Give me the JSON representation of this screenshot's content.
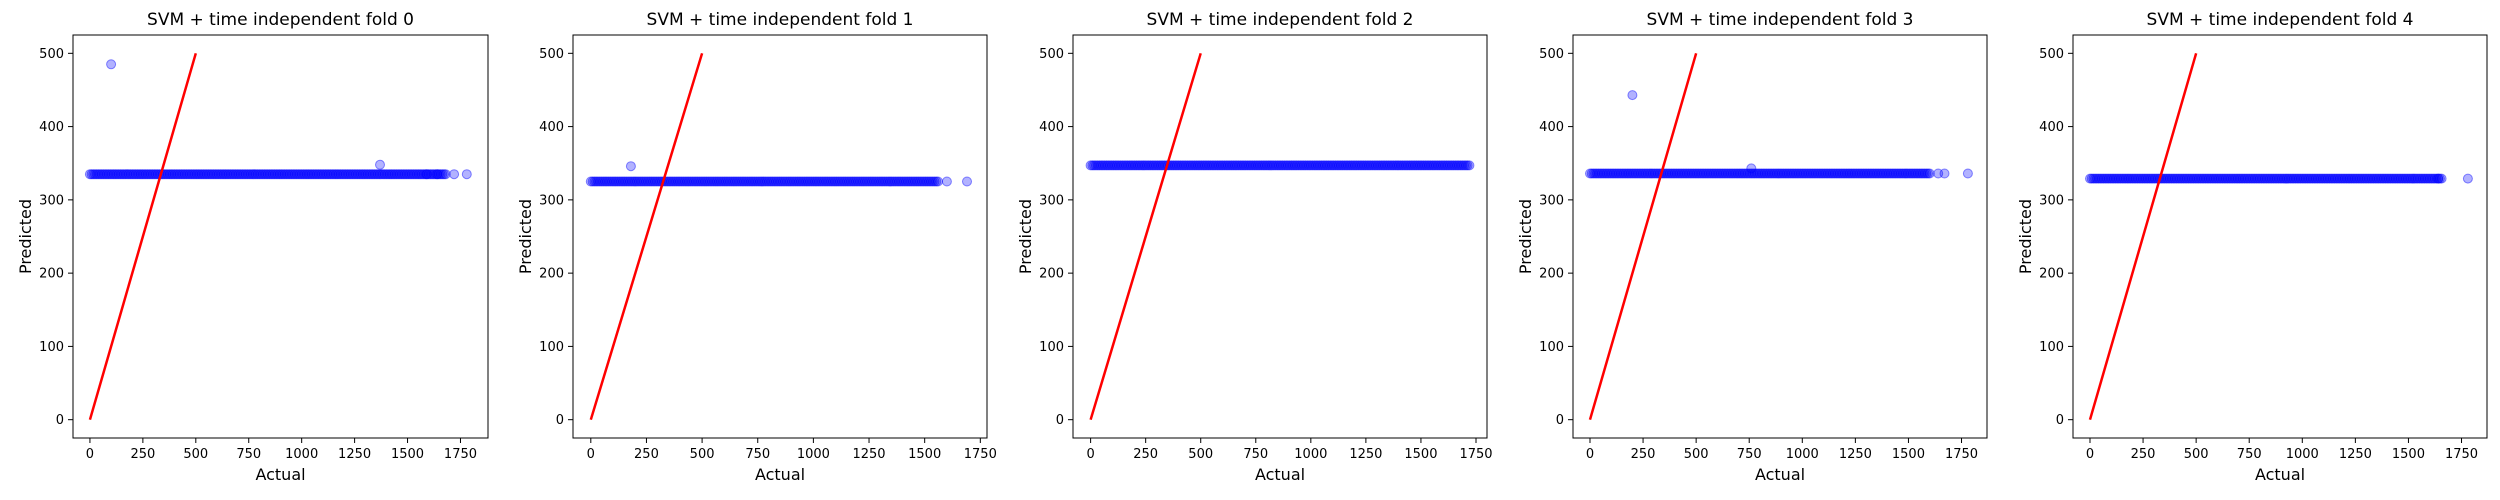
{
  "chart_data": [
    {
      "type": "scatter",
      "title": "SVM + time independent fold 0",
      "xlabel": "Actual",
      "ylabel": "Predicted",
      "xlim": [
        -80,
        1880
      ],
      "ylim": [
        -25,
        525
      ],
      "xticks": [
        0,
        250,
        500,
        750,
        1000,
        1250,
        1500,
        1750
      ],
      "yticks": [
        0,
        100,
        200,
        300,
        400,
        500
      ],
      "reference_line": {
        "x": [
          0,
          500
        ],
        "y": [
          0,
          500
        ],
        "color": "#ff0000"
      },
      "point_color": "#0000ff",
      "band_value": 335,
      "band_x_range": [
        0,
        1680
      ],
      "points": [
        [
          100,
          485
        ],
        [
          1370,
          348
        ],
        [
          1720,
          335
        ],
        [
          1780,
          335
        ],
        [
          1590,
          335
        ],
        [
          1640,
          335
        ]
      ]
    },
    {
      "type": "scatter",
      "title": "SVM + time independent fold 1",
      "xlabel": "Actual",
      "ylabel": "Predicted",
      "xlim": [
        -80,
        1780
      ],
      "ylim": [
        -25,
        525
      ],
      "xticks": [
        0,
        250,
        500,
        750,
        1000,
        1250,
        1500,
        1750
      ],
      "yticks": [
        0,
        100,
        200,
        300,
        400,
        500
      ],
      "reference_line": {
        "x": [
          0,
          500
        ],
        "y": [
          0,
          500
        ],
        "color": "#ff0000"
      },
      "point_color": "#0000ff",
      "band_value": 325,
      "band_x_range": [
        0,
        1560
      ],
      "points": [
        [
          180,
          346
        ],
        [
          1600,
          325
        ],
        [
          1690,
          325
        ]
      ]
    },
    {
      "type": "scatter",
      "title": "SVM + time independent fold 2",
      "xlabel": "Actual",
      "ylabel": "Predicted",
      "xlim": [
        -80,
        1800
      ],
      "ylim": [
        -25,
        525
      ],
      "xticks": [
        0,
        250,
        500,
        750,
        1000,
        1250,
        1500,
        1750
      ],
      "yticks": [
        0,
        100,
        200,
        300,
        400,
        500
      ],
      "reference_line": {
        "x": [
          0,
          500
        ],
        "y": [
          0,
          500
        ],
        "color": "#ff0000"
      },
      "point_color": "#0000ff",
      "band_value": 347,
      "band_x_range": [
        0,
        1720
      ],
      "points": []
    },
    {
      "type": "scatter",
      "title": "SVM + time independent fold 3",
      "xlabel": "Actual",
      "ylabel": "Predicted",
      "xlim": [
        -80,
        1870
      ],
      "ylim": [
        -25,
        525
      ],
      "xticks": [
        0,
        250,
        500,
        750,
        1000,
        1250,
        1500,
        1750
      ],
      "yticks": [
        0,
        100,
        200,
        300,
        400,
        500
      ],
      "reference_line": {
        "x": [
          0,
          500
        ],
        "y": [
          0,
          500
        ],
        "color": "#ff0000"
      },
      "point_color": "#0000ff",
      "band_value": 336,
      "band_x_range": [
        0,
        1600
      ],
      "points": [
        [
          200,
          443
        ],
        [
          760,
          343
        ],
        [
          1640,
          336
        ],
        [
          1670,
          336
        ],
        [
          1780,
          336
        ]
      ]
    },
    {
      "type": "scatter",
      "title": "SVM + time independent fold 4",
      "xlabel": "Actual",
      "ylabel": "Predicted",
      "xlim": [
        -80,
        1870
      ],
      "ylim": [
        -25,
        525
      ],
      "xticks": [
        0,
        250,
        500,
        750,
        1000,
        1250,
        1500,
        1750
      ],
      "yticks": [
        0,
        100,
        200,
        300,
        400,
        500
      ],
      "reference_line": {
        "x": [
          0,
          500
        ],
        "y": [
          0,
          500
        ],
        "color": "#ff0000"
      },
      "point_color": "#0000ff",
      "band_value": 329,
      "band_x_range": [
        0,
        1660
      ],
      "points": [
        [
          1640,
          329
        ],
        [
          1780,
          329
        ]
      ]
    }
  ]
}
